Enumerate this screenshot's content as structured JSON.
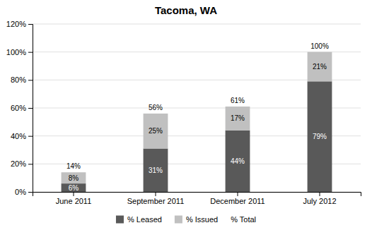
{
  "chart_data": {
    "type": "bar",
    "title": "Tacoma, WA",
    "categories": [
      "June 2011",
      "September 2011",
      "December 2011",
      "July 2012"
    ],
    "series": [
      {
        "name": "% Leased",
        "color": "#595959",
        "values": [
          6,
          31,
          44,
          79
        ],
        "value_labels": [
          "6%",
          "31%",
          "44%",
          "79%"
        ]
      },
      {
        "name": "% Issued",
        "color": "#c0c0c0",
        "values": [
          8,
          25,
          17,
          21
        ],
        "value_labels": [
          "8%",
          "25%",
          "17%",
          "21%"
        ]
      },
      {
        "name": "% Total",
        "type": "text",
        "values": [
          14,
          56,
          61,
          100
        ],
        "value_labels": [
          "14%",
          "56%",
          "61%",
          "100%"
        ]
      }
    ],
    "stacked": true,
    "data_labels": true,
    "ylim": [
      0,
      120
    ],
    "yticks": [
      {
        "value": 0,
        "label": "0%"
      },
      {
        "value": 20,
        "label": "20%"
      },
      {
        "value": 40,
        "label": "40%"
      },
      {
        "value": 60,
        "label": "60%"
      },
      {
        "value": 80,
        "label": "80%"
      },
      {
        "value": 100,
        "label": "100%"
      },
      {
        "value": 120,
        "label": "120%"
      }
    ],
    "grid": true,
    "legend": "bottom"
  }
}
